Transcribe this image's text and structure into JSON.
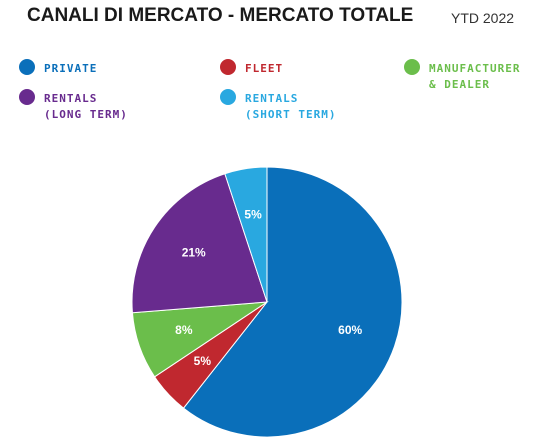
{
  "header": {
    "title": "CANALI DI MERCATO - MERCATO TOTALE",
    "subtitle": "YTD 2022"
  },
  "legend": [
    {
      "lines": [
        "PRIVATE"
      ],
      "color": "#0A6FBA"
    },
    {
      "lines": [
        "FLEET"
      ],
      "color": "#C0282F"
    },
    {
      "lines": [
        "MANUFACTURER",
        "& DEALER"
      ],
      "color": "#6BBE4B"
    },
    {
      "lines": [
        "RENTALS",
        "(LONG TERM)"
      ],
      "color": "#682B8E"
    },
    {
      "lines": [
        "RENTALS",
        "(SHORT TERM)"
      ],
      "color": "#29A8E0"
    }
  ],
  "chart_data": {
    "type": "pie",
    "title": "CANALI DI MERCATO - MERCATO TOTALE",
    "subtitle": "YTD 2022",
    "start": "12 o'clock",
    "direction": "clockwise",
    "slices": [
      {
        "label": "PRIVATE",
        "value": 60,
        "display": "60%",
        "color": "#0A6FBA"
      },
      {
        "label": "FLEET",
        "value": 5,
        "display": "5%",
        "color": "#C0282F"
      },
      {
        "label": "MANUFACTURER & DEALER",
        "value": 8,
        "display": "8%",
        "color": "#6BBE4B"
      },
      {
        "label": "RENTALS (LONG TERM)",
        "value": 21,
        "display": "21%",
        "color": "#682B8E"
      },
      {
        "label": "RENTALS (SHORT TERM)",
        "value": 5,
        "display": "5%",
        "color": "#29A8E0"
      }
    ]
  }
}
